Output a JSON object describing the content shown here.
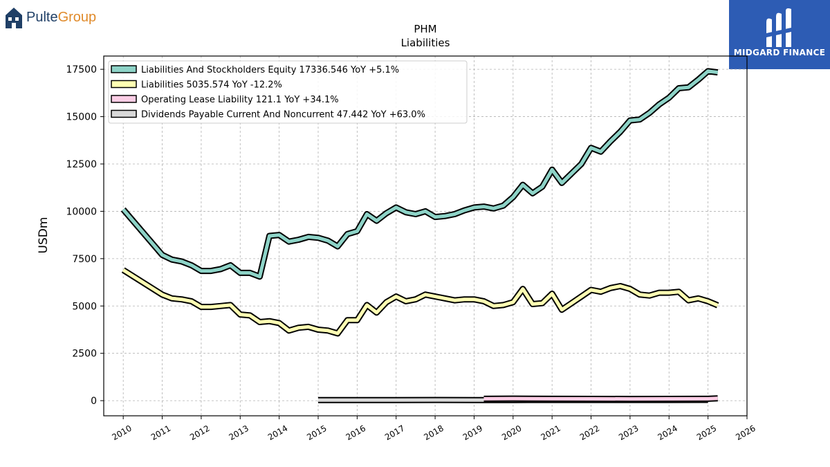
{
  "brands": {
    "left_name_1": "Pulte",
    "left_name_2": "Group",
    "right_name": "MIDGARD FINANCE"
  },
  "chart_data": {
    "type": "line",
    "title": "PHM",
    "subtitle": "Liabilities",
    "ylabel": "USDm",
    "xlabel": "",
    "xlim": [
      2009.5,
      2026.0
    ],
    "ylim": [
      -800,
      18200
    ],
    "yticks": [
      0,
      2500,
      5000,
      7500,
      10000,
      12500,
      15000,
      17500
    ],
    "ytick_labels": [
      "0",
      "2500",
      "5000",
      "7500",
      "10000",
      "12500",
      "15000",
      "17500"
    ],
    "xticks": [
      2010,
      2011,
      2012,
      2013,
      2014,
      2015,
      2016,
      2017,
      2018,
      2019,
      2020,
      2021,
      2022,
      2023,
      2024,
      2025,
      2026
    ],
    "xtick_labels": [
      "2010",
      "2011",
      "2012",
      "2013",
      "2014",
      "2015",
      "2016",
      "2017",
      "2018",
      "2019",
      "2020",
      "2021",
      "2022",
      "2023",
      "2024",
      "2025",
      "2026"
    ],
    "grid": true,
    "legend_position": "top-left",
    "series": [
      {
        "name": "Liabilities And Stockholders Equity",
        "legend": "Liabilities And Stockholders Equity  17336.546 YoY +5.1%",
        "color": "#8dd3c7",
        "x": [
          2010.0,
          2011.0,
          2011.25,
          2011.5,
          2011.75,
          2012.0,
          2012.25,
          2012.5,
          2012.75,
          2013.0,
          2013.25,
          2013.5,
          2013.75,
          2014.0,
          2014.25,
          2014.5,
          2014.75,
          2015.0,
          2015.25,
          2015.5,
          2015.75,
          2016.0,
          2016.25,
          2016.5,
          2016.75,
          2017.0,
          2017.25,
          2017.5,
          2017.75,
          2018.0,
          2018.25,
          2018.5,
          2018.75,
          2019.0,
          2019.25,
          2019.5,
          2019.75,
          2020.0,
          2020.25,
          2020.5,
          2020.75,
          2021.0,
          2021.25,
          2021.5,
          2021.75,
          2022.0,
          2022.25,
          2022.5,
          2022.75,
          2023.0,
          2023.25,
          2023.5,
          2023.75,
          2024.0,
          2024.25,
          2024.5,
          2024.75,
          2025.0,
          2025.25
        ],
        "values": [
          10100,
          7700,
          7450,
          7350,
          7150,
          6850,
          6850,
          6950,
          7150,
          6750,
          6750,
          6550,
          8700,
          8750,
          8400,
          8500,
          8650,
          8600,
          8450,
          8150,
          8800,
          8950,
          9850,
          9500,
          9900,
          10200,
          9950,
          9850,
          10000,
          9700,
          9750,
          9850,
          10050,
          10200,
          10250,
          10150,
          10300,
          10750,
          11400,
          10950,
          11300,
          12200,
          11500,
          12000,
          12500,
          13350,
          13150,
          13700,
          14200,
          14800,
          14850,
          15200,
          15650,
          16000,
          16500,
          16550,
          16950,
          17400,
          17336.546
        ]
      },
      {
        "name": "Liabilities",
        "legend": "Liabilities  5035.574 YoY -12.2%",
        "color": "#ffffb3",
        "x": [
          2010.0,
          2011.0,
          2011.25,
          2011.5,
          2011.75,
          2012.0,
          2012.25,
          2012.5,
          2012.75,
          2013.0,
          2013.25,
          2013.5,
          2013.75,
          2014.0,
          2014.25,
          2014.5,
          2014.75,
          2015.0,
          2015.25,
          2015.5,
          2015.75,
          2016.0,
          2016.25,
          2016.5,
          2016.75,
          2017.0,
          2017.25,
          2017.5,
          2017.75,
          2018.0,
          2018.25,
          2018.5,
          2018.75,
          2019.0,
          2019.25,
          2019.5,
          2019.75,
          2020.0,
          2020.25,
          2020.5,
          2020.75,
          2021.0,
          2021.25,
          2021.5,
          2021.75,
          2022.0,
          2022.25,
          2022.5,
          2022.75,
          2023.0,
          2023.25,
          2023.5,
          2023.75,
          2024.0,
          2024.25,
          2024.5,
          2024.75,
          2025.0,
          2025.25
        ],
        "values": [
          6900,
          5600,
          5400,
          5350,
          5250,
          4950,
          4950,
          5000,
          5050,
          4550,
          4500,
          4150,
          4200,
          4100,
          3700,
          3850,
          3900,
          3750,
          3700,
          3550,
          4250,
          4250,
          5050,
          4650,
          5200,
          5500,
          5250,
          5350,
          5600,
          5500,
          5400,
          5300,
          5350,
          5350,
          5250,
          5000,
          5050,
          5200,
          5900,
          5100,
          5150,
          5650,
          4800,
          5150,
          5500,
          5850,
          5750,
          5950,
          6050,
          5900,
          5600,
          5550,
          5700,
          5700,
          5750,
          5300,
          5400,
          5250,
          5035.574
        ]
      },
      {
        "name": "Operating Lease Liability",
        "legend": "Operating Lease Liability  121.1 YoY +34.1%",
        "color": "#fccde5",
        "x": [
          2019.25,
          2020.0,
          2021.0,
          2022.0,
          2023.0,
          2024.0,
          2025.0,
          2025.25
        ],
        "values": [
          100,
          110,
          100,
          95,
          90,
          95,
          100,
          121.1
        ]
      },
      {
        "name": "Dividends Payable Current And Noncurrent",
        "legend": "Dividends Payable Current And Noncurrent  47.442 YoY +63.0%",
        "color": "#d9d9d9",
        "x": [
          2015.0,
          2016.0,
          2017.0,
          2018.0,
          2019.0,
          2020.0,
          2021.0,
          2022.0,
          2023.0,
          2024.0,
          2025.0
        ],
        "values": [
          28,
          30,
          30,
          35,
          28,
          32,
          36,
          36,
          36,
          38,
          40
        ]
      }
    ]
  }
}
